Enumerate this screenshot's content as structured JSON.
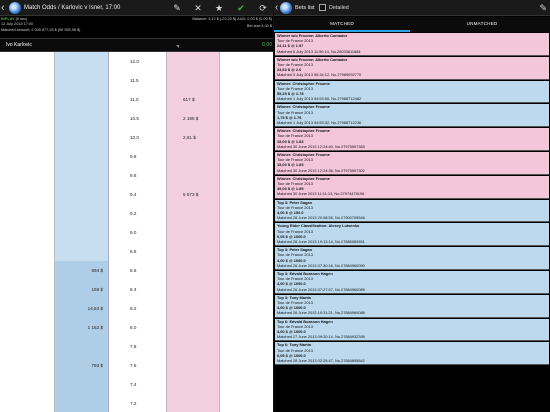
{
  "left": {
    "title": "Match Odds / Karlovic v Isner, 17:00",
    "in_play": "INPLAY",
    "delay": "(5 sec)",
    "date": "12 July 2013 17:00",
    "balance": "Balance: 3,12 $ (-22,20 $) AUD: 0,03 $ (0,00 $)",
    "bet_size": "Bet size:4,00 $",
    "matched": "Matched amount: 2 005 877,25 $ (59 935,96 $)",
    "runner_name": "Ivo Karlovic",
    "runner_pl": "0,00",
    "icons": [
      "pencil-icon",
      "close-icon",
      "star-icon",
      "check-icon",
      "refresh-icon"
    ],
    "ladder": [
      {
        "price": "12.0",
        "back": "",
        "lay": ""
      },
      {
        "price": "11.5",
        "back": "",
        "lay": ""
      },
      {
        "price": "11.0",
        "back": "",
        "lay": "617 $"
      },
      {
        "price": "10.5",
        "back": "",
        "lay": "2 186 $"
      },
      {
        "price": "10.0",
        "back": "",
        "lay": "2,61 $"
      },
      {
        "price": "9.8",
        "back": "",
        "lay": ""
      },
      {
        "price": "9.6",
        "back": "",
        "lay": ""
      },
      {
        "price": "9.4",
        "back": "",
        "lay": "5 573 $"
      },
      {
        "price": "9.2",
        "back": "",
        "lay": ""
      },
      {
        "price": "9.0",
        "back": "",
        "lay": ""
      },
      {
        "price": "8.8",
        "back": "",
        "lay": ""
      },
      {
        "price": "8.6",
        "back": "694 $",
        "lay": ""
      },
      {
        "price": "8.4",
        "back": "168 $",
        "lay": ""
      },
      {
        "price": "8.2",
        "back": "14,53 $",
        "lay": ""
      },
      {
        "price": "8.0",
        "back": "1 182 $",
        "lay": ""
      },
      {
        "price": "7.8",
        "back": "",
        "lay": ""
      },
      {
        "price": "7.6",
        "back": "793 $",
        "lay": ""
      },
      {
        "price": "7.4",
        "back": "",
        "lay": ""
      },
      {
        "price": "7.2",
        "back": "",
        "lay": ""
      }
    ]
  },
  "right": {
    "title": "Bets list",
    "detailed_label": "Detailed",
    "tabs": [
      "MATCHED",
      "UNMATCHED"
    ],
    "bets": [
      {
        "title": "Winner w/o Froome: Alberto Contador",
        "event": "Tour de France 2013",
        "stake": "24,11 $ @ 1.97",
        "matched": "Matched 6 July 2013 11:59:14, No.28033611684",
        "color": "pink",
        "rows": 4
      },
      {
        "title": "Winner w/o Froome: Alberto Contador",
        "event": "Tour de France 2013",
        "stake": "23,63 $ @ 2.0",
        "matched": "Matched 3 July 2013 08:34:12, No.27989092770",
        "color": "pink",
        "rows": 4
      },
      {
        "title": "Winner: Christopher Froome",
        "event": "Tour de France 2013",
        "stake": "55,25 $ @ 1.78",
        "matched": "Matched 1 July 2013 04:53:50, No.27988712482",
        "color": "blue",
        "rows": 4
      },
      {
        "title": "Winner: Christopher Froome",
        "event": "Tour de France 2013",
        "stake": "1,75 $ @ 1.79",
        "matched": "Matched 1 July 2013 04:53:32, No.27988712236",
        "color": "blue",
        "rows": 4
      },
      {
        "title": "Winner: Christopher Froome",
        "event": "Tour de France 2013",
        "stake": "15,00 $ @ 1.83",
        "matched": "Matched 30 June 2013 12:24:40, No.27975597383",
        "color": "pink",
        "rows": 4
      },
      {
        "title": "Winner: Christopher Froome",
        "event": "Tour de France 2013",
        "stake": "15,00 $ @ 1.83",
        "matched": "Matched 30 June 2013 12:24:36, No.27975597302",
        "color": "pink",
        "rows": 4
      },
      {
        "title": "Winner: Christopher Froome",
        "event": "Tour de France 2013",
        "stake": "39,00 $ @ 1.85",
        "matched": "Matched 30 June 2013 11:11:13, No.27974478196",
        "color": "pink",
        "rows": 4
      },
      {
        "title": "Top 3: Peter Sagan",
        "event": "Tour de France 2013",
        "stake": "4,00 $ @ 150.0",
        "matched": "Matched 28 June 2013 20:08:55, No.27900705546",
        "color": "blue",
        "rows": 4
      },
      {
        "title": "Young Rider Classification: Alexey Lutsenko",
        "event": "Tour de France 2013",
        "stake": "0,05 $ @ 1000.0",
        "matched": "Matched 28 June 2013 19:13:14, No.27885069651",
        "color": "blue",
        "rows": 4
      },
      {
        "title": "Top 3: Peter Sagan",
        "event": "Tour de France 2013",
        "stake": "4,00 $ @ 1000.0",
        "matched": "Matched 26 June 2013 07:30:16, No.27884960090",
        "color": "blue",
        "rows": 4
      },
      {
        "title": "Top 3: Edvald Boasson Hagen",
        "event": "Tour de France 2013",
        "stake": "4,00 $ @ 1000.0",
        "matched": "Matched 26 June 2013 07:27:07, No.27884960089",
        "color": "blue",
        "rows": 4
      },
      {
        "title": "Top 3: Tony Martin",
        "event": "Tour de France 2013",
        "stake": "4,00 $ @ 1000.0",
        "matched": "Matched 26 June 2013 10:31:21, No.27884960088",
        "color": "blue",
        "rows": 4
      },
      {
        "title": "Top 6: Edvald Boasson Hagen",
        "event": "Tour de France 2013",
        "stake": "4,00 $ @ 1000.0",
        "matched": "Matched 27 June 2013 09:20:14, No.27884932395",
        "color": "blue",
        "rows": 4
      },
      {
        "title": "Top 6: Tony Martin",
        "event": "Tour de France 2013",
        "stake": "0,05 $ @ 1000.0",
        "matched": "Matched 28 June 2013 02:25:47, No.27884895842",
        "color": "blue",
        "rows": 4
      }
    ]
  }
}
